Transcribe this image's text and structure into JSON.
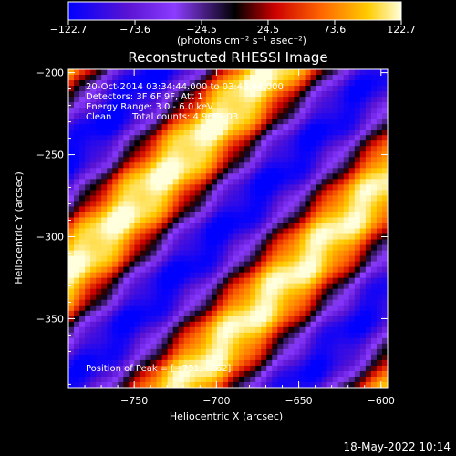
{
  "chart_data": {
    "type": "heatmap",
    "title": "Reconstructed RHESSI Image",
    "xlabel": "Heliocentric X (arcsec)",
    "ylabel": "Heliocentric Y (arcsec)",
    "xlim": [
      -790,
      -596
    ],
    "ylim": [
      -392,
      -198
    ],
    "xticks": [
      -750,
      -700,
      -650,
      -600
    ],
    "xtick_labels": [
      "−750",
      "−700",
      "−650",
      "−600"
    ],
    "yticks": [
      -200,
      -250,
      -300,
      -350
    ],
    "ytick_labels": [
      "−200",
      "−250",
      "−300",
      "−350"
    ],
    "colorbar": {
      "range": [
        -122.7,
        122.7
      ],
      "tick_values": [
        -122.7,
        -73.6,
        -24.5,
        24.5,
        73.6,
        122.7
      ],
      "tick_labels": [
        "−122.7",
        "−73.6",
        "−24.5",
        "24.5",
        "73.6",
        "122.7"
      ],
      "unit_label": "(photons cm⁻² s⁻¹ asec⁻²)",
      "colormap": [
        "#0000ff",
        "#6a1ec8",
        "#8c3cff",
        "#000000",
        "#cc0000",
        "#ff6600",
        "#ffcc00",
        "#ffffcc"
      ]
    },
    "pattern": {
      "description_values": "diagonal stripe fringe pattern",
      "peak_x": -731,
      "peak_y": -262
    },
    "annotations": {
      "time_range": "20-Oct-2014 03:34:44.000 to 03:40:44.000",
      "detectors": "Detectors: 3F 6F 9F, Att 1",
      "energy": "Energy Range: 3.0 - 6.0 keV",
      "clean": "Clean",
      "total_counts": "Total counts: 4.96E+03",
      "peak": "Position of Peak = [−731,−262]"
    }
  },
  "footer": {
    "timestamp": "18-May-2022 10:14"
  }
}
